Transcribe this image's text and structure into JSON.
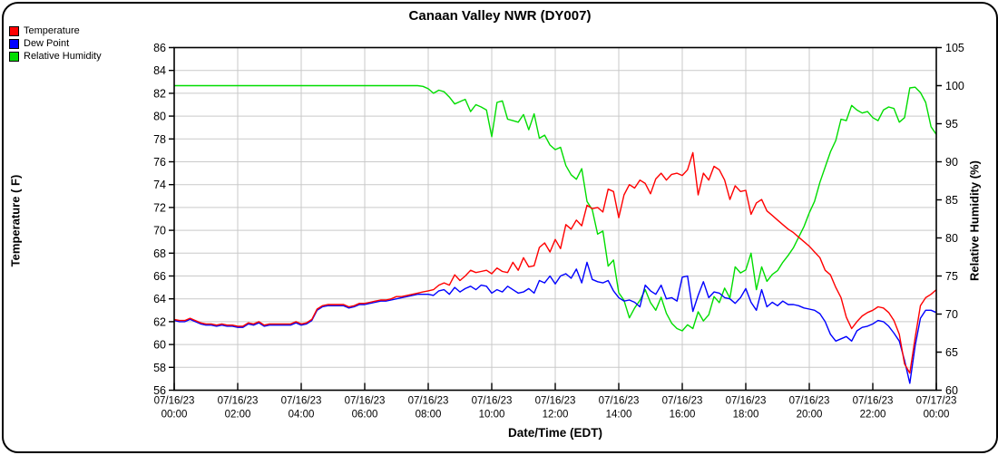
{
  "window": {
    "background": "#ffffff",
    "border_color": "#000000"
  },
  "legend": {
    "items": [
      {
        "label": "Temperature",
        "color": "#ff0000"
      },
      {
        "label": "Dew Point",
        "color": "#0000ff"
      },
      {
        "label": "Relative Humidity",
        "color": "#00dd00"
      }
    ]
  },
  "chart_data": {
    "type": "line",
    "title": "Canaan Valley NWR (DY007)",
    "grid": true,
    "legend_position": "top-left",
    "sample_interval_minutes": 10,
    "x_axis": {
      "label": "Date/Time (EDT)",
      "range_hours": [
        0,
        24
      ],
      "gridline_step_hours": 2,
      "ticks": [
        {
          "date": "07/16/23",
          "time": "00:00"
        },
        {
          "date": "07/16/23",
          "time": "02:00"
        },
        {
          "date": "07/16/23",
          "time": "04:00"
        },
        {
          "date": "07/16/23",
          "time": "06:00"
        },
        {
          "date": "07/16/23",
          "time": "08:00"
        },
        {
          "date": "07/16/23",
          "time": "10:00"
        },
        {
          "date": "07/16/23",
          "time": "12:00"
        },
        {
          "date": "07/16/23",
          "time": "14:00"
        },
        {
          "date": "07/16/23",
          "time": "16:00"
        },
        {
          "date": "07/16/23",
          "time": "18:00"
        },
        {
          "date": "07/16/23",
          "time": "20:00"
        },
        {
          "date": "07/16/23",
          "time": "22:00"
        },
        {
          "date": "07/17/23",
          "time": "00:00"
        }
      ]
    },
    "y_left": {
      "label": "Temperature ( F)",
      "min": 56,
      "max": 86,
      "tick_step": 2,
      "ticks": [
        86,
        84,
        82,
        80,
        78,
        76,
        74,
        72,
        70,
        68,
        66,
        64,
        62,
        60,
        58,
        56
      ]
    },
    "y_right": {
      "label": "Relative Humidity (%)",
      "min": 60,
      "max": 105,
      "tick_step": 5,
      "ticks": [
        105,
        100,
        95,
        90,
        85,
        80,
        75,
        70,
        65,
        60
      ]
    },
    "series": [
      {
        "name": "Temperature",
        "color": "#ff0000",
        "axis": "left",
        "values": [
          62.2,
          62.1,
          62.1,
          62.3,
          62.1,
          61.9,
          61.8,
          61.8,
          61.7,
          61.8,
          61.7,
          61.7,
          61.6,
          61.6,
          61.9,
          61.8,
          62.0,
          61.7,
          61.8,
          61.8,
          61.8,
          61.8,
          61.8,
          62.0,
          61.8,
          61.9,
          62.2,
          63.1,
          63.4,
          63.5,
          63.5,
          63.5,
          63.5,
          63.3,
          63.4,
          63.6,
          63.6,
          63.7,
          63.8,
          63.9,
          63.9,
          64.0,
          64.2,
          64.2,
          64.3,
          64.4,
          64.5,
          64.6,
          64.7,
          64.8,
          65.2,
          65.4,
          65.2,
          66.1,
          65.6,
          66.0,
          66.5,
          66.3,
          66.4,
          66.5,
          66.2,
          66.7,
          66.4,
          66.3,
          67.2,
          66.5,
          67.6,
          66.8,
          66.9,
          68.5,
          68.9,
          68.1,
          69.2,
          68.4,
          70.5,
          70.1,
          70.9,
          70.4,
          72.2,
          71.9,
          72.0,
          71.6,
          73.6,
          73.4,
          71.1,
          73.1,
          74.0,
          73.7,
          74.4,
          74.1,
          73.2,
          74.5,
          75.0,
          74.4,
          74.9,
          75.0,
          74.8,
          75.3,
          76.8,
          73.1,
          75.0,
          74.4,
          75.6,
          75.3,
          74.4,
          72.7,
          73.9,
          73.4,
          73.5,
          71.4,
          72.4,
          72.7,
          71.7,
          71.3,
          70.9,
          70.5,
          70.1,
          69.8,
          69.4,
          69.0,
          68.6,
          68.1,
          67.6,
          66.5,
          66.1,
          65.0,
          64.1,
          62.4,
          61.4,
          62.0,
          62.5,
          62.8,
          63.0,
          63.3,
          63.2,
          62.8,
          62.1,
          60.9,
          58.3,
          57.5,
          60.6,
          63.4,
          64.1,
          64.4,
          64.8
        ]
      },
      {
        "name": "Dew Point",
        "color": "#0000ff",
        "axis": "left",
        "values": [
          62.1,
          62.0,
          62.0,
          62.2,
          62.0,
          61.8,
          61.7,
          61.7,
          61.6,
          61.7,
          61.6,
          61.6,
          61.5,
          61.5,
          61.8,
          61.7,
          61.9,
          61.6,
          61.7,
          61.7,
          61.7,
          61.7,
          61.7,
          61.9,
          61.7,
          61.8,
          62.1,
          63.0,
          63.3,
          63.4,
          63.4,
          63.4,
          63.4,
          63.2,
          63.3,
          63.5,
          63.5,
          63.6,
          63.7,
          63.8,
          63.8,
          63.9,
          64.0,
          64.1,
          64.2,
          64.3,
          64.4,
          64.4,
          64.4,
          64.3,
          64.7,
          64.8,
          64.4,
          65.0,
          64.6,
          64.9,
          65.1,
          64.8,
          65.2,
          65.1,
          64.5,
          64.8,
          64.6,
          65.1,
          64.8,
          64.5,
          64.6,
          64.9,
          64.5,
          65.6,
          65.4,
          66.0,
          65.3,
          66.0,
          66.2,
          65.8,
          66.6,
          65.4,
          67.2,
          65.7,
          65.5,
          65.4,
          65.6,
          64.7,
          64.1,
          63.8,
          63.9,
          63.7,
          63.3,
          65.2,
          64.7,
          64.4,
          65.2,
          64.0,
          64.1,
          63.8,
          65.9,
          66.0,
          62.9,
          64.3,
          65.5,
          64.1,
          64.6,
          64.5,
          64.1,
          64.0,
          63.6,
          64.1,
          64.9,
          63.7,
          63.0,
          64.8,
          63.3,
          63.7,
          63.4,
          63.8,
          63.5,
          63.5,
          63.4,
          63.2,
          63.1,
          63.0,
          62.7,
          62.0,
          60.9,
          60.3,
          60.5,
          60.7,
          60.3,
          61.2,
          61.5,
          61.6,
          61.8,
          62.1,
          62.0,
          61.6,
          61.0,
          60.3,
          58.6,
          56.6,
          59.9,
          62.3,
          63.0,
          63.0,
          62.8
        ]
      },
      {
        "name": "Relative Humidity",
        "color": "#00dd00",
        "axis": "right",
        "values": [
          100,
          100,
          100,
          100,
          100,
          100,
          100,
          100,
          100,
          100,
          100,
          100,
          100,
          100,
          100,
          100,
          100,
          100,
          100,
          100,
          100,
          100,
          100,
          100,
          100,
          100,
          100,
          100,
          100,
          100,
          100,
          100,
          100,
          100,
          100,
          100,
          100,
          100,
          100,
          100,
          100,
          100,
          100,
          100,
          100,
          100,
          100,
          99.9,
          99.6,
          99.0,
          99.4,
          99.2,
          98.5,
          97.6,
          97.9,
          98.2,
          96.6,
          97.5,
          97.2,
          96.8,
          93.3,
          97.8,
          98.0,
          95.6,
          95.4,
          95.2,
          96.2,
          94.2,
          96.3,
          93.1,
          93.5,
          92.2,
          91.6,
          91.9,
          89.5,
          88.3,
          87.7,
          89.1,
          84.8,
          83.7,
          80.5,
          80.9,
          76.3,
          77.1,
          72.8,
          71.8,
          69.5,
          70.8,
          71.8,
          73.2,
          71.5,
          70.5,
          72.2,
          70.1,
          68.8,
          68.1,
          67.8,
          68.6,
          68.1,
          70.3,
          69.1,
          69.9,
          72.3,
          71.5,
          73.4,
          72.1,
          76.2,
          75.4,
          75.8,
          78.0,
          73.2,
          76.2,
          74.3,
          75.2,
          75.7,
          76.8,
          77.7,
          78.7,
          80.1,
          81.5,
          83.3,
          84.8,
          87.3,
          89.3,
          91.3,
          92.8,
          95.6,
          95.4,
          97.4,
          96.8,
          96.4,
          96.6,
          95.8,
          95.4,
          96.8,
          97.2,
          97.0,
          95.2,
          95.8,
          99.7,
          99.8,
          99.1,
          97.8,
          94.6,
          93.6
        ]
      }
    ]
  }
}
